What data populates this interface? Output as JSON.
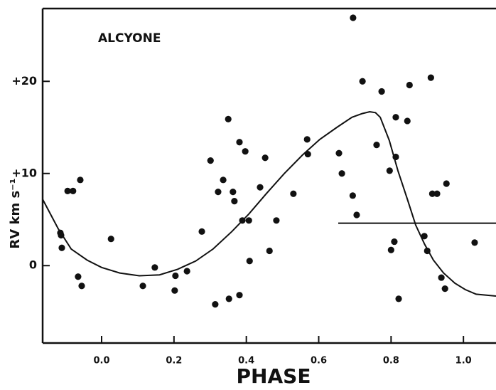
{
  "chart_data": {
    "type": "scatter",
    "title": "ALCYONE",
    "xlabel": "PHASE",
    "ylabel": "RV km s⁻¹",
    "xlim": [
      -0.163,
      1.09
    ],
    "ylim": [
      -8.4,
      27.9
    ],
    "xticks": [
      {
        "value": 0,
        "label": "0.0"
      },
      0.2,
      0.4,
      0.6,
      0.8,
      {
        "value": 1,
        "label": "1.0"
      }
    ],
    "yticks": [
      {
        "value": 0,
        "label": "0"
      },
      {
        "value": 10,
        "label": "+10"
      },
      {
        "value": 20,
        "label": "+20"
      }
    ],
    "color": "#111111",
    "x": [
      -0.114,
      -0.112,
      -0.11,
      -0.094,
      -0.079,
      -0.059,
      -0.065,
      -0.055,
      0.026,
      0.114,
      0.147,
      0.204,
      0.202,
      0.236,
      0.277,
      0.301,
      0.314,
      0.322,
      0.336,
      0.35,
      0.352,
      0.363,
      0.367,
      0.381,
      0.381,
      0.389,
      0.397,
      0.407,
      0.409,
      0.438,
      0.452,
      0.464,
      0.483,
      0.53,
      0.568,
      0.57,
      0.656,
      0.664,
      0.694,
      0.695,
      0.705,
      0.721,
      0.76,
      0.774,
      0.796,
      0.8,
      0.809,
      0.813,
      0.813,
      0.821,
      0.845,
      0.851,
      0.892,
      0.9,
      0.91,
      0.914,
      0.927,
      0.939,
      0.949,
      0.953,
      1.031
    ],
    "values": [
      3.55,
      3.3,
      1.93,
      8.1,
      8.1,
      9.3,
      -1.2,
      -2.2,
      2.9,
      -2.2,
      -0.2,
      -1.1,
      -2.7,
      -0.6,
      3.7,
      11.4,
      -4.2,
      8.0,
      9.3,
      15.9,
      -3.6,
      8.0,
      7.0,
      13.4,
      -3.2,
      4.9,
      12.4,
      4.9,
      0.5,
      8.5,
      11.7,
      1.6,
      4.9,
      7.8,
      13.7,
      12.1,
      12.2,
      10.0,
      7.6,
      26.9,
      5.5,
      20.0,
      13.1,
      18.9,
      10.3,
      1.7,
      2.6,
      16.1,
      11.8,
      -3.6,
      15.7,
      19.6,
      3.2,
      1.6,
      20.4,
      7.8,
      7.8,
      -1.3,
      -2.5,
      8.9,
      2.5
    ],
    "curve": {
      "x": [
        -0.163,
        -0.12,
        -0.084,
        -0.04,
        0.0,
        0.05,
        0.104,
        0.16,
        0.21,
        0.26,
        0.308,
        0.36,
        0.407,
        0.455,
        0.505,
        0.555,
        0.603,
        0.65,
        0.692,
        0.72,
        0.741,
        0.757,
        0.77,
        0.795,
        0.819,
        0.845,
        0.868,
        0.893,
        0.917,
        0.945,
        0.976,
        1.005,
        1.035,
        1.09
      ],
      "values": [
        7.2,
        4.0,
        1.8,
        0.6,
        -0.2,
        -0.8,
        -1.1,
        -1.0,
        -0.4,
        0.5,
        1.8,
        3.7,
        5.6,
        7.8,
        10.0,
        12.0,
        13.7,
        15.0,
        16.1,
        16.5,
        16.7,
        16.6,
        16.1,
        13.6,
        10.3,
        7.2,
        4.4,
        2.3,
        0.6,
        -0.8,
        -1.9,
        -2.6,
        -3.1,
        -3.3
      ]
    },
    "reference_line": {
      "x": [
        0.654,
        1.09
      ],
      "value": 4.6
    }
  }
}
